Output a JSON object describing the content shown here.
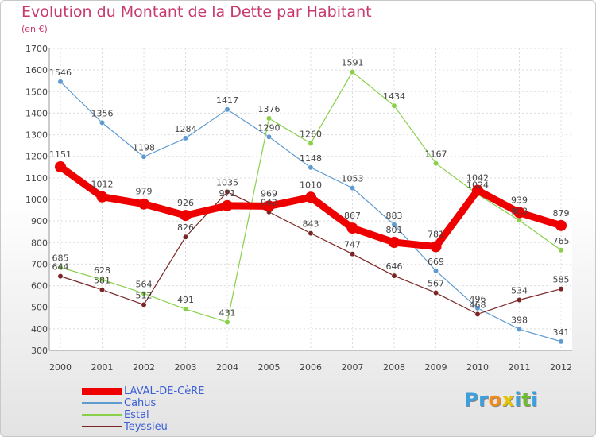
{
  "header": {
    "title": "Evolution du Montant de la Dette par Habitant",
    "subtitle": "(en €)"
  },
  "brand": {
    "letters": [
      "P",
      "r",
      "o",
      "x",
      "i",
      "t",
      "i"
    ],
    "colors": [
      "#3aa0e0",
      "#3aa0e0",
      "#f08a1c",
      "#e8c400",
      "#3aa0e0",
      "#6bbf2a",
      "#3aa0e0"
    ]
  },
  "chart_data": {
    "type": "line",
    "title": "Evolution du Montant de la Dette par Habitant",
    "subtitle": "(en €)",
    "x": [
      "2000",
      "2001",
      "2002",
      "2003",
      "2004",
      "2005",
      "2006",
      "2007",
      "2008",
      "2009",
      "2010",
      "2011",
      "2012"
    ],
    "ylim": [
      300,
      1700
    ],
    "yticks": [
      300,
      400,
      500,
      600,
      700,
      800,
      900,
      1000,
      1100,
      1200,
      1300,
      1400,
      1500,
      1600,
      1700
    ],
    "grid": true,
    "legend_position": "bottom-left",
    "series": [
      {
        "name": "LAVAL-DE-CèRE",
        "color": "#ee0000",
        "values": [
          1151,
          1012,
          979,
          926,
          971,
          969,
          1010,
          867,
          801,
          781,
          1042,
          939,
          879
        ],
        "labels": [
          "1151",
          "1012",
          "979",
          "926",
          "971",
          "969",
          "1010",
          "867",
          "801",
          "781",
          "1042",
          "939",
          "879"
        ]
      },
      {
        "name": "Cahus",
        "color": "#5f9bd0",
        "values": [
          1546,
          1356,
          1198,
          1284,
          1417,
          1290,
          1148,
          1053,
          883,
          669,
          496,
          398,
          341
        ],
        "labels": [
          "1546",
          "1356",
          "1198",
          "1284",
          "1417",
          "1290",
          "1148",
          "1053",
          "883",
          "669",
          "496",
          "398",
          "341"
        ]
      },
      {
        "name": "Estal",
        "color": "#88d04a",
        "values": [
          685,
          628,
          564,
          491,
          431,
          1376,
          1260,
          1591,
          1434,
          1167,
          1024,
          903,
          765
        ],
        "labels": [
          "685",
          "628",
          "564",
          "491",
          "431",
          "1376",
          "1260",
          "1591",
          "1434",
          "1167",
          "1024",
          "903",
          "765"
        ]
      },
      {
        "name": "Teyssieu",
        "color": "#7b2424",
        "values": [
          644,
          581,
          512,
          826,
          1035,
          942,
          843,
          747,
          646,
          567,
          468,
          534,
          585
        ],
        "labels": [
          "644",
          "581",
          "512",
          "826",
          "1035",
          "942",
          "843",
          "747",
          "646",
          "567",
          "468",
          "534",
          "585"
        ]
      }
    ]
  }
}
